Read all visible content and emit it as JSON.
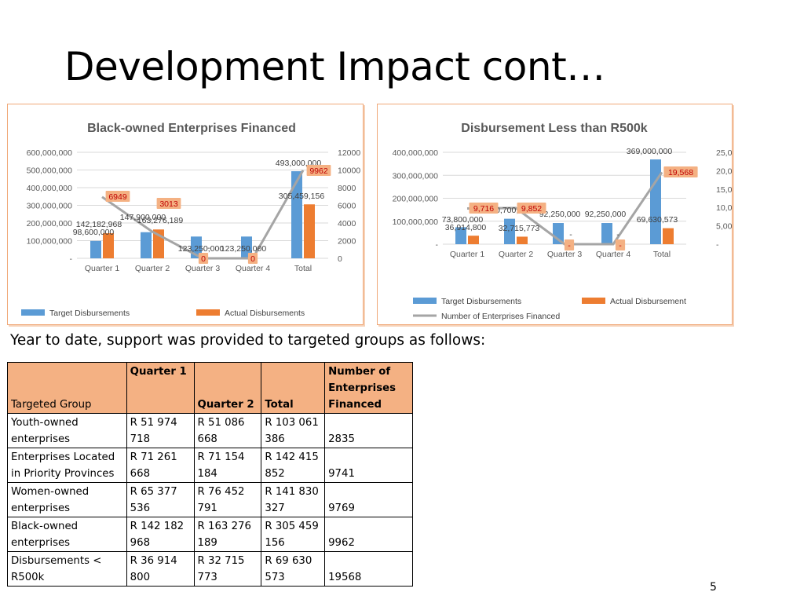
{
  "slide": {
    "title": "Development Impact cont…",
    "ytd_text": "Year to date, support was provided to targeted groups as follows:",
    "page_number": "5"
  },
  "colors": {
    "target": "#5b9bd5",
    "actual": "#ed7d31",
    "line": "#a5a5a5",
    "label_fill": "#f4b183"
  },
  "chart_data": [
    {
      "type": "bar",
      "title": "Black-owned Enterprises Financed",
      "categories": [
        "Quarter 1",
        "Quarter 2",
        "Quarter 3",
        "Quarter 4",
        "Total"
      ],
      "y_ticks": [
        "-",
        "100,000,000",
        "200,000,000",
        "300,000,000",
        "400,000,000",
        "500,000,000",
        "600,000,000"
      ],
      "ylim": [
        0,
        600000000
      ],
      "y2_ticks": [
        "0",
        "2000",
        "4000",
        "6000",
        "8000",
        "10000",
        "12000"
      ],
      "y2lim": [
        0,
        12000
      ],
      "series": [
        {
          "name": "Target Disbursements",
          "values": [
            98600000,
            147900000,
            123250000,
            123250000,
            493000000
          ],
          "labels": [
            "98,600,000",
            "147,900,000",
            "123,250,000",
            "123,250,000",
            "493,000,000"
          ]
        },
        {
          "name": "Actual Disbursements",
          "values": [
            142182968,
            163276189,
            0,
            0,
            305459156
          ],
          "labels": [
            "142,182,968",
            "163,276,189",
            "-",
            "-",
            "305,459,156"
          ]
        }
      ],
      "line": {
        "values": [
          6949,
          3013,
          0,
          0,
          9962
        ],
        "labels": [
          "6949",
          "3013",
          "0",
          "0",
          "9962"
        ]
      },
      "legend": [
        "Target Disbursements",
        "Actual Disbursements"
      ],
      "legend_position": "bottom"
    },
    {
      "type": "bar",
      "title": "Disbursement Less than R500k",
      "categories": [
        "Quarter 1",
        "Quarter 2",
        "Quarter 3",
        "Quarter 4",
        "Total"
      ],
      "y_ticks": [
        "-",
        "100,000,000",
        "200,000,000",
        "300,000,000",
        "400,000,000"
      ],
      "ylim": [
        0,
        400000000
      ],
      "y2_ticks": [
        "-",
        "5,000",
        "10,000",
        "15,000",
        "20,000",
        "25,000"
      ],
      "y2lim": [
        0,
        25000
      ],
      "series": [
        {
          "name": "Target Disbursements",
          "values": [
            73800000,
            110700000,
            92250000,
            92250000,
            369000000
          ],
          "labels": [
            "73,800,000",
            "110,700,000",
            "92,250,000",
            "92,250,000",
            "369,000,000"
          ]
        },
        {
          "name": "Actual Disbursement",
          "values": [
            36914800,
            32715773,
            0,
            0,
            69630573
          ],
          "labels": [
            "36,914,800",
            "32,715,773",
            "-",
            "-",
            "69,630,573"
          ]
        }
      ],
      "line": {
        "name": "Number of Enterprises Financed",
        "values": [
          9716,
          9852,
          0,
          0,
          19568
        ],
        "labels": [
          "9,716",
          "9,852",
          "-",
          "-",
          "19,568"
        ]
      },
      "legend": [
        "Target Disbursements",
        "Actual Disbursement",
        "Number of Enterprises Financed"
      ],
      "legend_position": "bottom"
    }
  ],
  "table": {
    "headers": [
      "Targeted Group",
      "Quarter 1",
      "Quarter 2",
      "Total",
      "Number of Enterprises Financed"
    ],
    "rows": [
      [
        "Youth-owned enterprises",
        "R 51 974 718",
        "R 51 086 668",
        "R 103 061 386",
        "2835"
      ],
      [
        "Enterprises Located in Priority Provinces",
        "R 71 261 668",
        "R 71 154 184",
        "R 142 415 852",
        "9741"
      ],
      [
        "Women-owned enterprises",
        "R 65 377 536",
        "R 76 452 791",
        "R 141 830 327",
        "9769"
      ],
      [
        "Black-owned enterprises",
        "R 142 182 968",
        "R 163 276 189",
        "R 305 459 156",
        "9962"
      ],
      [
        "Disbursements < R500k",
        "R 36 914 800",
        "R 32 715 773",
        "R 69 630 573",
        "19568"
      ]
    ]
  }
}
